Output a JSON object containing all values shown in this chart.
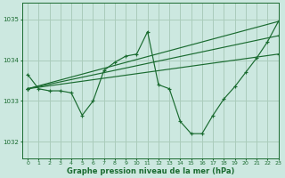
{
  "title": "Graphe pression niveau de la mer (hPa)",
  "background_color": "#cce8e0",
  "grid_color": "#aaccbb",
  "line_color": "#1a6b30",
  "xlim": [
    -0.5,
    23
  ],
  "ylim": [
    1031.6,
    1035.4
  ],
  "yticks": [
    1032,
    1033,
    1034,
    1035
  ],
  "xticks": [
    0,
    1,
    2,
    3,
    4,
    5,
    6,
    7,
    8,
    9,
    10,
    11,
    12,
    13,
    14,
    15,
    16,
    17,
    18,
    19,
    20,
    21,
    22,
    23
  ],
  "series": [
    {
      "x": [
        0,
        1,
        2,
        3,
        4,
        5,
        6,
        7,
        8,
        9,
        10,
        11,
        12,
        13,
        14,
        15,
        16,
        17,
        18,
        19,
        20,
        21,
        22,
        23
      ],
      "y": [
        1033.65,
        1033.3,
        1033.25,
        1033.25,
        1033.2,
        1032.65,
        1033.0,
        1033.75,
        1033.95,
        1034.1,
        1034.15,
        1034.7,
        1033.4,
        1033.3,
        1032.5,
        1032.2,
        1032.2,
        1032.65,
        1033.05,
        1033.35,
        1033.7,
        1034.05,
        1034.45,
        1034.95
      ]
    },
    {
      "x": [
        0,
        23
      ],
      "y": [
        1033.3,
        1034.95
      ]
    },
    {
      "x": [
        0,
        23
      ],
      "y": [
        1033.3,
        1034.6
      ]
    },
    {
      "x": [
        0,
        23
      ],
      "y": [
        1033.3,
        1034.15
      ]
    }
  ]
}
